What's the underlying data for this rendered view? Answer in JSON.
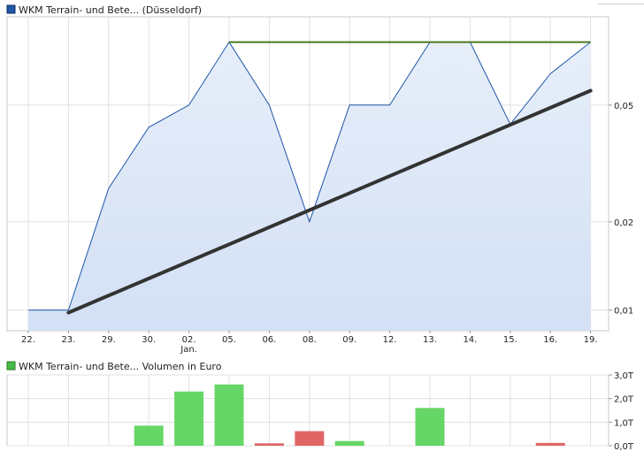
{
  "chart_data": [
    {
      "type": "area",
      "legend": "WKM Terrain- und Bete... (Düsseldorf)",
      "color": "#1f56a8",
      "fill_top": "#e6eef9",
      "fill_bottom": "#d3e0f5",
      "categories": [
        "22.",
        "23.",
        "29.",
        "30.",
        "02.",
        "05.",
        "06.",
        "08.",
        "09.",
        "12.",
        "13.",
        "14.",
        "15.",
        "16.",
        "19."
      ],
      "category_sublabels": [
        "",
        "",
        "",
        "",
        "Jan.",
        "",
        "",
        "",
        "",
        "",
        "",
        "",
        "",
        "",
        ""
      ],
      "values": [
        0.01,
        0.01,
        0.026,
        0.042,
        0.05,
        0.082,
        0.05,
        0.02,
        0.05,
        0.05,
        0.082,
        0.082,
        0.043,
        0.064,
        0.082
      ],
      "y_ticks": [
        "0,01",
        "0,02",
        "0,05"
      ],
      "y_tick_values": [
        0.01,
        0.02,
        0.05
      ],
      "ylim": [
        0.0085,
        0.1
      ],
      "scale": "log",
      "grid": true,
      "annotations": [
        {
          "kind": "horizontal-resistance-line",
          "color": "#4a7a1e",
          "from": "05.",
          "to": "19.",
          "value": 0.082
        },
        {
          "kind": "trend-line",
          "color": "#333333",
          "from": "23.",
          "from_value": 0.0098,
          "to": "19.",
          "to_value": 0.056
        }
      ]
    },
    {
      "type": "bar",
      "legend": "WKM Terrain- und Bete... Volumen in Euro",
      "legend_color": "#44bb44",
      "categories": [
        "22.",
        "23.",
        "29.",
        "30.",
        "02.",
        "05.",
        "06.",
        "08.",
        "09.",
        "12.",
        "13.",
        "14.",
        "15.",
        "16.",
        "19."
      ],
      "values": [
        0,
        0,
        0,
        850,
        2300,
        2600,
        100,
        620,
        200,
        0,
        1600,
        0,
        0,
        120,
        0
      ],
      "direction": [
        "",
        "",
        "",
        "up",
        "up",
        "up",
        "down",
        "down",
        "up",
        "",
        "up",
        "",
        "",
        "down",
        ""
      ],
      "up_color": "#66d666",
      "down_color": "#e06666",
      "y_ticks": [
        "0,0T",
        "1,0T",
        "2,0T",
        "3,0T"
      ],
      "y_tick_values": [
        0,
        1000,
        2000,
        3000
      ],
      "ylim": [
        0,
        3000
      ],
      "grid": true
    }
  ]
}
